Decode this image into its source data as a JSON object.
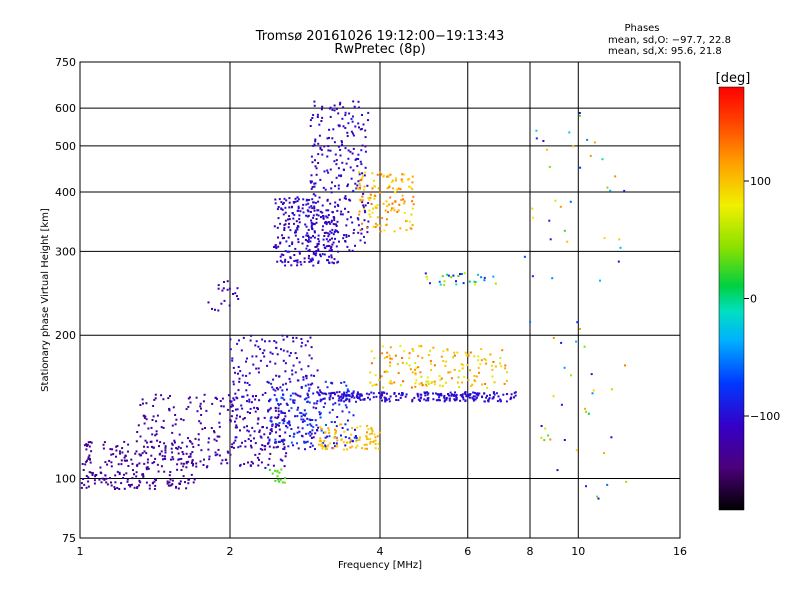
{
  "chart_data": {
    "type": "scatter",
    "title": "Tromsø 20161026 19:12:00−19:13:43",
    "subtitle": "RwPretec (8p)",
    "xlabel": "Frequency [MHz]",
    "ylabel": "Stationary phase Virtual Height [km]",
    "x_scale": "log2",
    "y_scale": "log",
    "xlim": [
      1,
      16
    ],
    "ylim": [
      75,
      750
    ],
    "x_ticks": [
      1,
      2,
      4,
      6,
      8,
      10,
      16
    ],
    "x_tick_labels": [
      "1",
      "2",
      "4",
      "6",
      "8",
      "10",
      "16"
    ],
    "y_ticks": [
      75,
      100,
      200,
      300,
      400,
      500,
      600,
      750
    ],
    "y_tick_labels": [
      "75",
      "100",
      "200",
      "300",
      "400",
      "500",
      "600",
      "750"
    ],
    "grid": true,
    "phase_box": {
      "title": "Phases",
      "line_o": "mean, sd,O: −97.7, 22.8",
      "line_x": "mean, sd,X:  95.6, 21.8"
    },
    "colorbar": {
      "unit_label": "[deg]",
      "range": [
        -180,
        180
      ],
      "ticks": [
        100,
        0,
        -100
      ],
      "tick_labels": [
        "100",
        "0",
        "−100"
      ]
    },
    "clusters": [
      {
        "x_range": [
          1.0,
          1.7
        ],
        "y_range": [
          95,
          120
        ],
        "phase_range": [
          -140,
          -120
        ],
        "count": 220
      },
      {
        "x_range": [
          1.3,
          2.6
        ],
        "y_range": [
          105,
          150
        ],
        "phase_range": [
          -140,
          -110
        ],
        "count": 260
      },
      {
        "x_range": [
          2.0,
          3.0
        ],
        "y_range": [
          115,
          200
        ],
        "phase_range": [
          -125,
          -95
        ],
        "count": 220
      },
      {
        "x_range": [
          2.4,
          3.6
        ],
        "y_range": [
          115,
          160
        ],
        "phase_range": [
          -110,
          -60
        ],
        "count": 180
      },
      {
        "x_range": [
          3.0,
          4.0
        ],
        "y_range": [
          115,
          130
        ],
        "phase_range": [
          85,
          120
        ],
        "count": 90
      },
      {
        "x_range": [
          3.0,
          7.5
        ],
        "y_range": [
          145,
          152
        ],
        "phase_range": [
          -115,
          -90
        ],
        "count": 260
      },
      {
        "x_range": [
          3.8,
          7.2
        ],
        "y_range": [
          155,
          190
        ],
        "phase_range": [
          60,
          140
        ],
        "count": 160
      },
      {
        "x_range": [
          2.45,
          3.3
        ],
        "y_range": [
          280,
          390
        ],
        "phase_range": [
          -130,
          -90
        ],
        "count": 260
      },
      {
        "x_range": [
          2.9,
          3.8
        ],
        "y_range": [
          300,
          620
        ],
        "phase_range": [
          -125,
          -95
        ],
        "count": 260
      },
      {
        "x_range": [
          3.6,
          4.7
        ],
        "y_range": [
          330,
          440
        ],
        "phase_range": [
          80,
          140
        ],
        "count": 130
      },
      {
        "x_range": [
          4.9,
          7.0
        ],
        "y_range": [
          255,
          270
        ],
        "phase_range": [
          -110,
          80
        ],
        "count": 30
      },
      {
        "x_range": [
          1.8,
          2.1
        ],
        "y_range": [
          225,
          260
        ],
        "phase_range": [
          -130,
          -110
        ],
        "count": 20
      },
      {
        "x_range": [
          2.4,
          2.6
        ],
        "y_range": [
          98,
          105
        ],
        "phase_range": [
          20,
          40
        ],
        "count": 15
      },
      {
        "x_range": [
          7.8,
          12.5
        ],
        "y_range": [
          90,
          600
        ],
        "phase_range": [
          -120,
          130
        ],
        "count": 70
      }
    ]
  }
}
